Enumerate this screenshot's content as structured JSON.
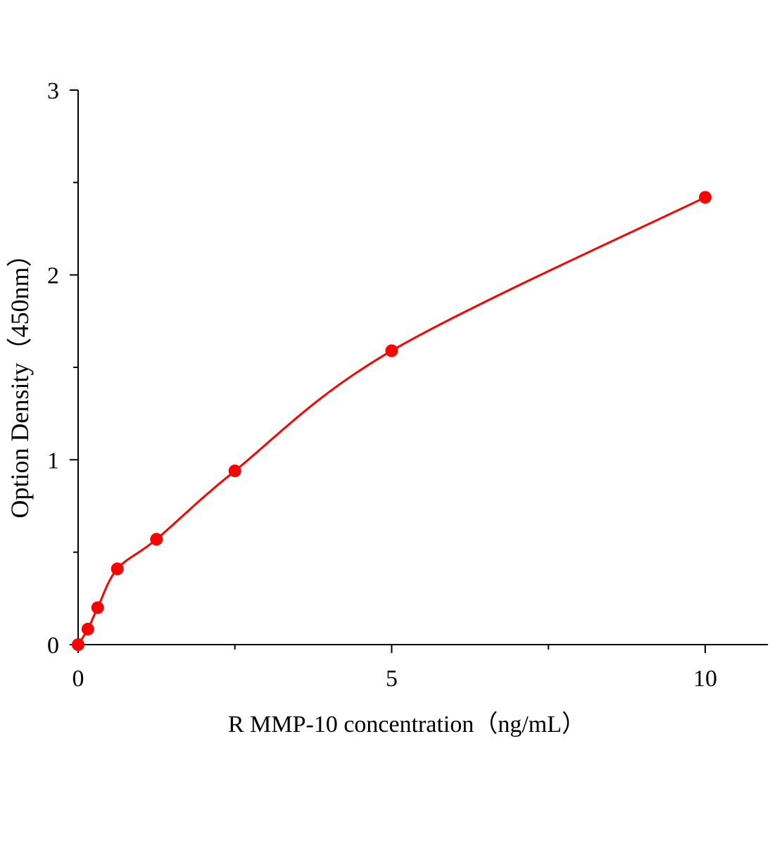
{
  "chart_data": {
    "type": "scatter",
    "title": "",
    "xlabel": "R MMP-10  concentration（ng/mL）",
    "ylabel": "Option Density（450nm）",
    "xlim": [
      0,
      11
    ],
    "ylim": [
      0,
      3
    ],
    "xticks": [
      0,
      5,
      10
    ],
    "yticks": [
      0,
      1,
      2,
      3
    ],
    "grid": false,
    "color": "#ff0000",
    "series": [
      {
        "x": [
          0,
          0.156,
          0.312,
          0.625,
          1.25,
          2.5,
          5,
          10
        ],
        "y": [
          0.0,
          0.084,
          0.2,
          0.41,
          0.57,
          0.94,
          1.59,
          2.42
        ],
        "fit_curve": true
      }
    ]
  }
}
